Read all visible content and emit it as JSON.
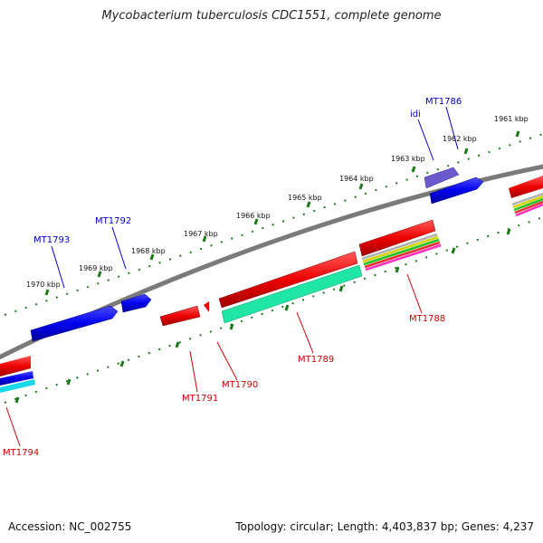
{
  "title": "Mycobacterium tuberculosis CDC1551, complete genome",
  "footer": {
    "accession": "Accession: NC_002755",
    "stats": "Topology: circular; Length: 4,403,837 bp; Genes: 4,237"
  },
  "colors": {
    "backbone": "#7a7a7a",
    "tick": "#1a7a1a",
    "forward_gene": "#0000ee",
    "forward_label": "#0000cc",
    "reverse_gene": "#ee0000",
    "reverse_label": "#cc0000",
    "idi_gene": "#6a5acd"
  },
  "ticks": [
    "1961 kbp",
    "1962 kbp",
    "1963 kbp",
    "1964 kbp",
    "1965 kbp",
    "1966 kbp",
    "1967 kbp",
    "1968 kbp",
    "1969 kbp",
    "1970 kbp"
  ],
  "gene_labels": {
    "forward": [
      "MT1786",
      "idi",
      "MT1792",
      "MT1793"
    ],
    "reverse": [
      "MT1788",
      "MT1789",
      "MT1790",
      "MT1791",
      "MT1794"
    ]
  }
}
